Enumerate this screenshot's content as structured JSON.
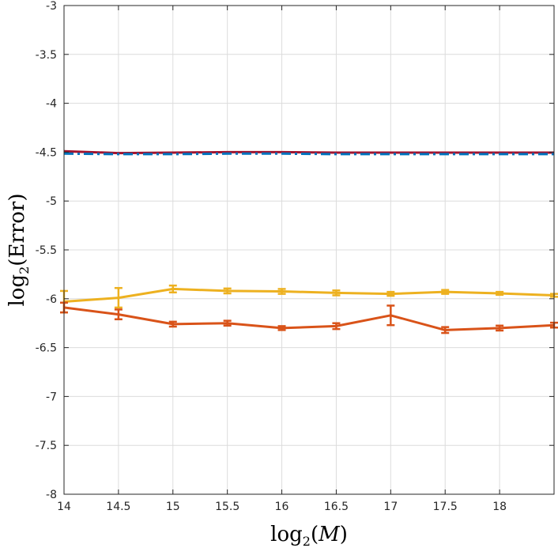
{
  "chart_data": {
    "type": "line",
    "xlabel": {
      "main": "log",
      "sub": "2",
      "open": "(",
      "var": "M",
      "close": ")"
    },
    "ylabel": {
      "main": "log",
      "sub": "2",
      "arg": "(Error)"
    },
    "xlim": [
      14,
      18.5
    ],
    "ylim": [
      -8,
      -3
    ],
    "xticks": [
      14,
      14.5,
      15,
      15.5,
      16,
      16.5,
      17,
      17.5,
      18
    ],
    "xtick_labels": [
      "14",
      "14.5",
      "15",
      "15.5",
      "16",
      "16.5",
      "17",
      "17.5",
      "18"
    ],
    "yticks": [
      -3,
      -3.5,
      -4,
      -4.5,
      -5,
      -5.5,
      -6,
      -6.5,
      -7,
      -7.5,
      -8
    ],
    "ytick_labels": [
      "-3",
      "-3.5",
      "-4",
      "-4.5",
      "-5",
      "-5.5",
      "-6",
      "-6.5",
      "-7",
      "-7.5",
      "-8"
    ],
    "grid": true,
    "x": [
      14,
      14.5,
      15,
      15.5,
      16,
      16.5,
      17,
      17.5,
      18,
      18.5
    ],
    "series": [
      {
        "color": "#A2142F",
        "style": "solid",
        "values": [
          -4.49,
          -4.51,
          -4.505,
          -4.5,
          -4.5,
          -4.505,
          -4.505,
          -4.505,
          -4.505,
          -4.505
        ]
      },
      {
        "color": "#0072BD",
        "style": "dashdot",
        "values": [
          -4.515,
          -4.52,
          -4.52,
          -4.515,
          -4.515,
          -4.52,
          -4.52,
          -4.52,
          -4.52,
          -4.52
        ]
      },
      {
        "color": "#EDB120",
        "style": "solid",
        "values": [
          -6.03,
          -5.99,
          -5.9,
          -5.92,
          -5.925,
          -5.94,
          -5.95,
          -5.93,
          -5.945,
          -5.965
        ],
        "errors": [
          0.11,
          0.1,
          0.035,
          0.025,
          0.025,
          0.025,
          0.02,
          0.02,
          0.015,
          0.015
        ]
      },
      {
        "color": "#D95319",
        "style": "solid",
        "values": [
          -6.09,
          -6.16,
          -6.26,
          -6.25,
          -6.3,
          -6.28,
          -6.17,
          -6.32,
          -6.3,
          -6.27
        ],
        "errors": [
          0.05,
          0.05,
          0.025,
          0.025,
          0.02,
          0.03,
          0.1,
          0.03,
          0.025,
          0.025
        ]
      }
    ]
  }
}
